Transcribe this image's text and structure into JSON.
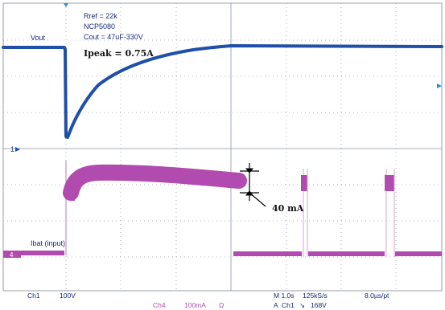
{
  "scope": {
    "annotations": {
      "rref": "Rref = 22k",
      "part": "NCP5080",
      "cout": "Cout = 47uF-330V",
      "ipeak": "Ipeak = 0.75A",
      "delta": "40 mA"
    },
    "channels": {
      "vout_label": "Vout",
      "ibat_label": "Ibat (input)",
      "ch1_marker": "1",
      "ch4_marker": "4"
    },
    "status": {
      "ch1": "Ch1",
      "ch1_scale": "100V",
      "ch4": "Ch4",
      "ch4_scale": "100mA",
      "ohm": "Ω",
      "timebase": "M 1.0s",
      "sample_rate": "125kS/s",
      "per_point": "8.0µs/pt",
      "trigger_prefix": "A",
      "trigger_source": "Ch1",
      "trigger_slope": "↘",
      "trigger_level": "168V"
    },
    "colors": {
      "ch1": "#1f4fa8",
      "ch4": "#b24bb0",
      "grid": "#9aa2b2",
      "text": "#1b2a7a"
    }
  }
}
